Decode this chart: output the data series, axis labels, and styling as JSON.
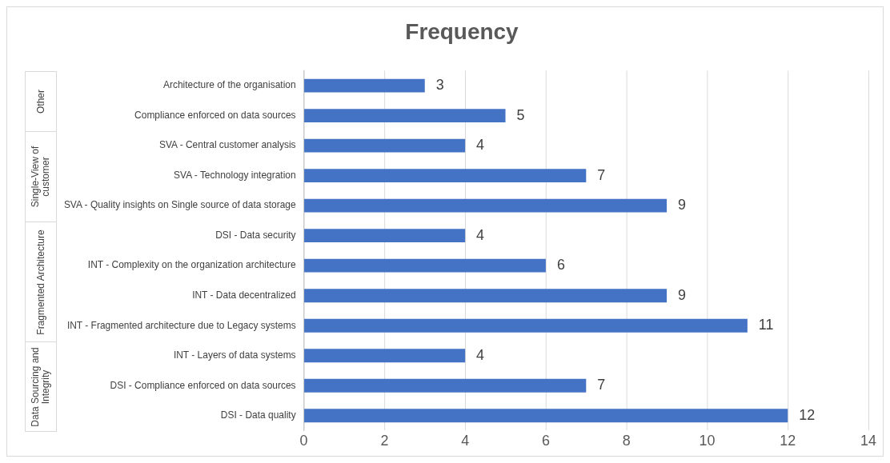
{
  "chart_data": {
    "type": "bar",
    "orientation": "horizontal",
    "title": "Frequency",
    "categories": [
      "Architecture of the organisation",
      "Compliance enforced on data sources",
      "SVA - Central customer analysis",
      "SVA - Technology integration",
      "SVA - Quality insights on Single source of data storage",
      "DSI - Data security",
      "INT - Complexity on the organization architecture",
      "INT - Data decentralized",
      "INT - Fragmented architecture due to Legacy systems",
      "INT - Layers of data systems",
      "DSI - Compliance enforced on data sources",
      "DSI - Data quality"
    ],
    "values": [
      3,
      5,
      4,
      7,
      9,
      4,
      6,
      9,
      11,
      4,
      7,
      12
    ],
    "color": "#4472c4",
    "xlim": [
      0,
      14
    ],
    "xticks": [
      0,
      2,
      4,
      6,
      8,
      10,
      12,
      14
    ],
    "grid": "x",
    "data_labels": true,
    "legend": false,
    "annotations": [
      "Other",
      "Single-View of customer",
      "Fragmented Architecture",
      "Data Sourcing and Integrity"
    ]
  }
}
